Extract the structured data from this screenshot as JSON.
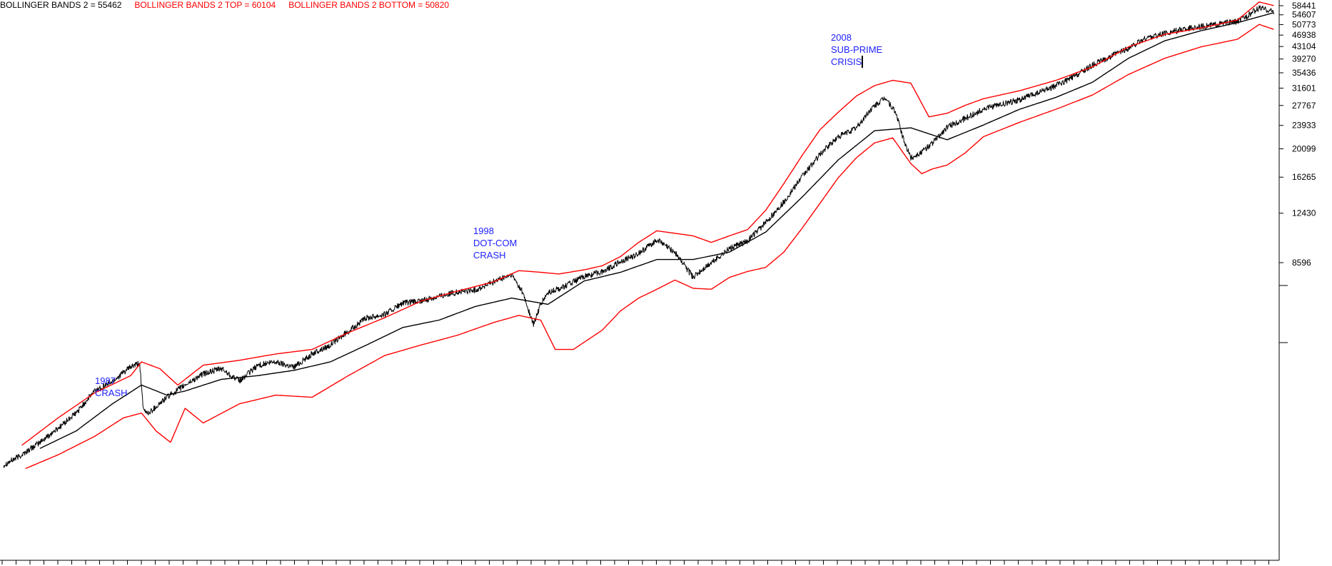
{
  "header": {
    "bb_mid_label": "BOLLINGER BANDS 2 = 55462",
    "bb_top_label": "BOLLINGER BANDS 2 TOP = 60104",
    "bb_bottom_label": "BOLLINGER BANDS 2 BOTTOM = 50820"
  },
  "colors": {
    "price": "#000000",
    "middle_band": "#000000",
    "bands": "#ff0000",
    "annotations": "#2020ff",
    "header_mid": "#000000",
    "header_band": "#ff0000"
  },
  "annotations": [
    {
      "id": "crash-1987",
      "lines": [
        "1987",
        "CRASH"
      ],
      "x": 1987.8
    },
    {
      "id": "dotcom-1998",
      "lines": [
        "1998",
        "DOT-COM",
        "CRASH"
      ],
      "x": 1998.6
    },
    {
      "id": "subprime-2008",
      "lines": [
        "2008",
        "SUB-PRIME",
        "CRISIS"
      ],
      "x": 2008.3
    }
  ],
  "chart_data": {
    "type": "line",
    "yscale": "log",
    "ylim": [
      1800,
      62000
    ],
    "xlim": [
      1984,
      2019
    ],
    "y_ticks": [
      58441,
      54607,
      50773,
      46938,
      43104,
      39270,
      35436,
      31601,
      27767,
      23933,
      20099,
      16265,
      12430,
      8596
    ],
    "series": [
      {
        "role": "price",
        "x": [
          1984.0,
          1984.5,
          1985.0,
          1985.5,
          1986.0,
          1986.5,
          1987.0,
          1987.5,
          1987.75,
          1987.85,
          1988.0,
          1988.5,
          1989.0,
          1989.5,
          1990.0,
          1990.5,
          1991.0,
          1991.5,
          1992.0,
          1992.5,
          1993.0,
          1993.5,
          1994.0,
          1994.5,
          1995.0,
          1995.5,
          1996.0,
          1996.5,
          1997.0,
          1997.5,
          1998.0,
          1998.3,
          1998.6,
          1998.8,
          1999.0,
          1999.5,
          2000.0,
          2000.5,
          2001.0,
          2001.5,
          2002.0,
          2002.5,
          2003.0,
          2003.5,
          2004.0,
          2004.5,
          2005.0,
          2005.5,
          2006.0,
          2006.5,
          2007.0,
          2007.5,
          2007.9,
          2008.3,
          2008.6,
          2008.8,
          2009.0,
          2009.3,
          2009.6,
          2010.0,
          2010.5,
          2011.0,
          2011.5,
          2012.0,
          2012.5,
          2013.0,
          2013.5,
          2014.0,
          2014.5,
          2015.0,
          2015.5,
          2016.0,
          2016.5,
          2017.0,
          2017.5,
          2018.0,
          2018.3,
          2018.6,
          2019.0
        ],
        "y": [
          1900,
          2050,
          2250,
          2500,
          2800,
          3300,
          3550,
          3950,
          4050,
          2850,
          2800,
          3150,
          3450,
          3750,
          3900,
          3550,
          4000,
          4100,
          3950,
          4350,
          4650,
          5150,
          5700,
          5850,
          6350,
          6450,
          6700,
          6900,
          7000,
          7450,
          7850,
          6900,
          5400,
          6300,
          6850,
          7250,
          7750,
          8050,
          8650,
          9200,
          10200,
          9300,
          7700,
          8600,
          9550,
          10100,
          11600,
          13500,
          16300,
          19300,
          22000,
          23500,
          27000,
          29500,
          26000,
          21500,
          18800,
          19600,
          21000,
          23600,
          25200,
          27000,
          28000,
          29000,
          30500,
          32200,
          34500,
          37500,
          40000,
          42500,
          46000,
          47500,
          49000,
          50000,
          51000,
          52000,
          54500,
          57500,
          56000
        ]
      },
      {
        "role": "middle_band",
        "x": [
          1985.0,
          1986.0,
          1987.0,
          1987.8,
          1988.5,
          1989.0,
          1990.0,
          1991.0,
          1992.0,
          1993.0,
          1994.0,
          1995.0,
          1996.0,
          1997.0,
          1998.0,
          1999.0,
          2000.0,
          2001.0,
          2002.0,
          2003.0,
          2004.0,
          2005.0,
          2006.0,
          2007.0,
          2008.0,
          2009.0,
          2010.0,
          2011.0,
          2012.0,
          2013.0,
          2014.0,
          2015.0,
          2016.0,
          2017.0,
          2018.0,
          2019.0
        ],
        "y": [
          2150,
          2450,
          3000,
          3450,
          3200,
          3300,
          3600,
          3700,
          3850,
          4100,
          4650,
          5300,
          5600,
          6200,
          6600,
          6300,
          7500,
          8000,
          8800,
          8800,
          9300,
          10800,
          14000,
          18500,
          23000,
          23500,
          21500,
          24000,
          27000,
          29500,
          33000,
          39500,
          45000,
          48500,
          51500,
          55462
        ]
      },
      {
        "role": "upper_band",
        "x": [
          1984.5,
          1985.5,
          1986.5,
          1987.5,
          1987.8,
          1988.3,
          1988.8,
          1989.5,
          1990.5,
          1991.5,
          1992.5,
          1993.5,
          1994.5,
          1995.5,
          1996.5,
          1997.5,
          1998.2,
          1998.8,
          1999.3,
          2000.0,
          2000.5,
          2001.0,
          2001.5,
          2002.0,
          2002.5,
          2003.0,
          2003.5,
          2004.0,
          2004.5,
          2005.0,
          2005.5,
          2006.0,
          2006.5,
          2007.0,
          2007.5,
          2008.0,
          2008.5,
          2009.0,
          2009.5,
          2010.0,
          2010.5,
          2011.0,
          2012.0,
          2013.0,
          2014.0,
          2015.0,
          2016.0,
          2017.0,
          2018.0,
          2018.6,
          2019.0
        ],
        "y": [
          2200,
          2700,
          3250,
          3700,
          4100,
          3900,
          3450,
          4000,
          4150,
          4350,
          4500,
          5100,
          5700,
          6450,
          6950,
          7450,
          8100,
          8000,
          7900,
          8150,
          8400,
          9000,
          10000,
          10900,
          10700,
          10500,
          10000,
          10500,
          11000,
          12700,
          15500,
          19100,
          23200,
          26400,
          29800,
          32200,
          33500,
          32800,
          25500,
          26200,
          27800,
          29200,
          31000,
          33500,
          37000,
          43000,
          47200,
          49500,
          52500,
          60104,
          58500
        ]
      },
      {
        "role": "lower_band",
        "x": [
          1984.6,
          1985.5,
          1986.5,
          1987.3,
          1987.8,
          1988.2,
          1988.6,
          1989.0,
          1989.5,
          1990.5,
          1991.5,
          1992.5,
          1993.5,
          1994.5,
          1995.5,
          1996.5,
          1997.5,
          1998.2,
          1998.8,
          1999.2,
          1999.7,
          2000.5,
          2001.0,
          2001.5,
          2002.0,
          2002.5,
          2003.0,
          2003.5,
          2004.0,
          2004.5,
          2005.0,
          2005.5,
          2006.0,
          2006.5,
          2007.0,
          2007.5,
          2008.0,
          2008.5,
          2009.0,
          2009.3,
          2009.6,
          2010.0,
          2010.5,
          2011.0,
          2012.0,
          2013.0,
          2014.0,
          2015.0,
          2016.0,
          2017.0,
          2018.0,
          2018.6,
          2019.0
        ],
        "y": [
          1850,
          2050,
          2350,
          2700,
          2800,
          2450,
          2250,
          2900,
          2600,
          3000,
          3200,
          3150,
          3700,
          4300,
          4650,
          5000,
          5500,
          5800,
          5600,
          4500,
          4500,
          5200,
          6000,
          6600,
          7050,
          7550,
          7100,
          7050,
          7700,
          8050,
          8300,
          9300,
          11100,
          13400,
          16200,
          18800,
          21000,
          21800,
          18000,
          16700,
          17300,
          17800,
          19500,
          22000,
          24500,
          27000,
          30000,
          35000,
          39500,
          43000,
          45500,
          50820,
          49000
        ]
      }
    ]
  }
}
